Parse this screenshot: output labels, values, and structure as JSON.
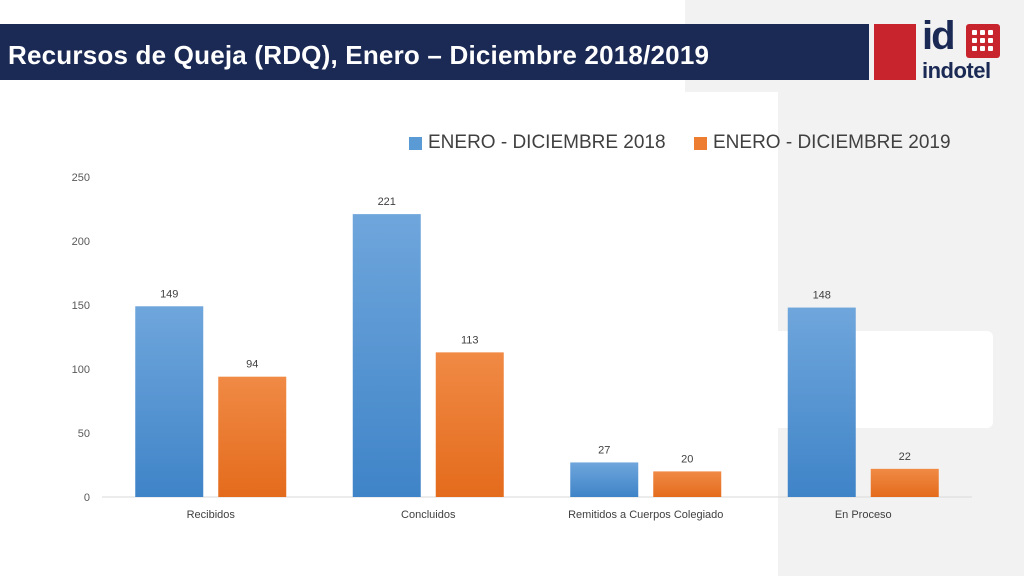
{
  "slide": {
    "title": "Recursos de Queja (RDQ), Enero – Diciembre 2018/2019"
  },
  "logo": {
    "mark": "id",
    "wordmark": "indotel",
    "icon": "grid-dots-icon",
    "colors": {
      "red": "#c8242e",
      "navy": "#1b2a55"
    }
  },
  "chart_data": {
    "type": "bar",
    "categories": [
      "Recibidos",
      "Concluidos",
      "Remitidos a Cuerpos Colegiado",
      "En Proceso"
    ],
    "series": [
      {
        "name": "ENERO - DICIEMBRE 2018",
        "values": [
          149,
          221,
          27,
          148
        ],
        "color": "#5b9bd5"
      },
      {
        "name": "ENERO - DICIEMBRE 2019",
        "values": [
          94,
          113,
          20,
          22
        ],
        "color": "#ed7d31"
      }
    ],
    "yticks": [
      0,
      50,
      100,
      150,
      200,
      250
    ],
    "ylim": [
      0,
      250
    ],
    "grid": false,
    "legend_position": "top",
    "data_labels": true
  }
}
